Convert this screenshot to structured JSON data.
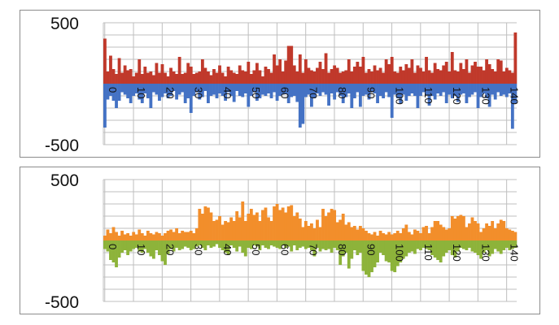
{
  "chart_data": [
    {
      "type": "bar",
      "colors": {
        "positive": "#c0392b",
        "negative": "#4472c4"
      },
      "ylim": [
        -500,
        500
      ],
      "y_ticks": [
        "500",
        "-500"
      ],
      "x_tick_labels": [
        "0",
        "10",
        "20",
        "30",
        "40",
        "50",
        "60",
        "70",
        "80",
        "90",
        "100",
        "110",
        "120",
        "130",
        "140"
      ],
      "grid": true,
      "x": [
        0,
        1,
        2,
        3,
        4,
        5,
        6,
        7,
        8,
        9,
        10,
        11,
        12,
        13,
        14,
        15,
        16,
        17,
        18,
        19,
        20,
        21,
        22,
        23,
        24,
        25,
        26,
        27,
        28,
        29,
        30,
        31,
        32,
        33,
        34,
        35,
        36,
        37,
        38,
        39,
        40,
        41,
        42,
        43,
        44,
        45,
        46,
        47,
        48,
        49,
        50,
        51,
        52,
        53,
        54,
        55,
        56,
        57,
        58,
        59,
        60,
        61,
        62,
        63,
        64,
        65,
        66,
        67,
        68,
        69,
        70,
        71,
        72,
        73,
        74,
        75,
        76,
        77,
        78,
        79,
        80,
        81,
        82,
        83,
        84,
        85,
        86,
        87,
        88,
        89,
        90,
        91,
        92,
        93,
        94,
        95,
        96,
        97,
        98,
        99,
        100,
        101,
        102,
        103,
        104,
        105,
        106,
        107,
        108,
        109,
        110,
        111,
        112,
        113,
        114,
        115,
        116,
        117,
        118,
        119,
        120,
        121,
        122,
        123,
        124,
        125,
        126,
        127,
        128,
        129,
        130,
        131,
        132,
        133,
        134,
        135,
        136,
        137,
        138,
        139,
        140,
        141,
        142,
        143
      ],
      "positive_values": [
        370,
        100,
        230,
        120,
        80,
        210,
        90,
        150,
        110,
        120,
        60,
        90,
        200,
        80,
        140,
        90,
        100,
        70,
        170,
        90,
        160,
        90,
        60,
        130,
        100,
        80,
        220,
        80,
        90,
        170,
        140,
        80,
        90,
        100,
        200,
        130,
        100,
        70,
        120,
        90,
        150,
        90,
        60,
        140,
        110,
        90,
        80,
        150,
        110,
        100,
        180,
        80,
        110,
        170,
        110,
        60,
        140,
        120,
        90,
        240,
        150,
        200,
        100,
        190,
        310,
        310,
        150,
        100,
        240,
        90,
        200,
        130,
        110,
        100,
        130,
        180,
        120,
        250,
        90,
        120,
        150,
        130,
        90,
        100,
        110,
        200,
        100,
        140,
        180,
        140,
        220,
        90,
        120,
        100,
        150,
        110,
        130,
        90,
        200,
        160,
        220,
        100,
        90,
        140,
        110,
        160,
        130,
        200,
        90,
        150,
        130,
        100,
        220,
        110,
        90,
        170,
        120,
        110,
        150,
        180,
        100,
        260,
        110,
        100,
        170,
        120,
        200,
        90,
        150,
        180,
        140,
        140,
        110,
        200,
        160,
        120,
        100,
        200,
        190,
        100,
        130,
        110,
        90,
        420
      ],
      "negative_values": [
        -360,
        -130,
        -100,
        -140,
        -200,
        -140,
        -70,
        -90,
        -120,
        -160,
        -100,
        -80,
        -130,
        -160,
        -80,
        -120,
        -200,
        -70,
        -90,
        -140,
        -110,
        -80,
        -120,
        -100,
        -60,
        -130,
        -90,
        -70,
        -160,
        -120,
        -240,
        -100,
        -70,
        -130,
        -110,
        -60,
        -160,
        -100,
        -90,
        -120,
        -80,
        -100,
        -140,
        -70,
        -100,
        -150,
        -60,
        -100,
        -110,
        -80,
        -190,
        -100,
        -70,
        -140,
        -120,
        -90,
        -100,
        -80,
        -120,
        -70,
        -140,
        -100,
        -90,
        -80,
        -160,
        -110,
        -100,
        -150,
        -360,
        -330,
        -110,
        -90,
        -190,
        -120,
        -80,
        -100,
        -70,
        -90,
        -180,
        -80,
        -130,
        -70,
        -100,
        -160,
        -110,
        -80,
        -200,
        -120,
        -70,
        -190,
        -100,
        -90,
        -130,
        -70,
        -80,
        -160,
        -100,
        -120,
        -70,
        -110,
        -280,
        -90,
        -120,
        -160,
        -90,
        -140,
        -100,
        -80,
        -100,
        -200,
        -100,
        -70,
        -90,
        -180,
        -100,
        -130,
        -80,
        -100,
        -70,
        -160,
        -90,
        -120,
        -100,
        -150,
        -90,
        -80,
        -160,
        -110,
        -90,
        -70,
        -200,
        -110,
        -80,
        -120,
        -190,
        -90,
        -130,
        -70,
        -100,
        -90,
        -110,
        -80,
        -370,
        -160
      ]
    },
    {
      "type": "bar",
      "colors": {
        "positive": "#f28e2b",
        "negative": "#8db33a"
      },
      "ylim": [
        -500,
        500
      ],
      "y_ticks": [
        "500",
        "-500"
      ],
      "x_tick_labels": [
        "0",
        "10",
        "20",
        "30",
        "40",
        "50",
        "60",
        "70",
        "80",
        "90",
        "100",
        "110",
        "120",
        "130",
        "140"
      ],
      "grid": true,
      "x": [
        0,
        1,
        2,
        3,
        4,
        5,
        6,
        7,
        8,
        9,
        10,
        11,
        12,
        13,
        14,
        15,
        16,
        17,
        18,
        19,
        20,
        21,
        22,
        23,
        24,
        25,
        26,
        27,
        28,
        29,
        30,
        31,
        32,
        33,
        34,
        35,
        36,
        37,
        38,
        39,
        40,
        41,
        42,
        43,
        44,
        45,
        46,
        47,
        48,
        49,
        50,
        51,
        52,
        53,
        54,
        55,
        56,
        57,
        58,
        59,
        60,
        61,
        62,
        63,
        64,
        65,
        66,
        67,
        68,
        69,
        70,
        71,
        72,
        73,
        74,
        75,
        76,
        77,
        78,
        79,
        80,
        81,
        82,
        83,
        84,
        85,
        86,
        87,
        88,
        89,
        90,
        91,
        92,
        93,
        94,
        95,
        96,
        97,
        98,
        99,
        100,
        101,
        102,
        103,
        104,
        105,
        106,
        107,
        108,
        109,
        110,
        111,
        112,
        113,
        114,
        115,
        116,
        117,
        118,
        119,
        120,
        121,
        122,
        123,
        124,
        125,
        126,
        127,
        128,
        129,
        130,
        131,
        132,
        133,
        134,
        135,
        136,
        137,
        138,
        139,
        140,
        141,
        142,
        143
      ],
      "positive_values": [
        40,
        90,
        60,
        110,
        70,
        40,
        80,
        50,
        60,
        40,
        70,
        50,
        90,
        60,
        40,
        80,
        60,
        50,
        70,
        60,
        40,
        60,
        80,
        90,
        70,
        100,
        60,
        80,
        70,
        70,
        80,
        60,
        100,
        260,
        220,
        280,
        270,
        230,
        160,
        170,
        200,
        130,
        160,
        150,
        190,
        160,
        240,
        190,
        320,
        160,
        220,
        260,
        210,
        230,
        160,
        250,
        270,
        190,
        160,
        280,
        300,
        250,
        270,
        230,
        280,
        290,
        200,
        230,
        180,
        110,
        160,
        120,
        140,
        100,
        170,
        110,
        260,
        200,
        230,
        260,
        250,
        150,
        170,
        220,
        130,
        150,
        110,
        120,
        90,
        120,
        100,
        80,
        60,
        50,
        70,
        40,
        80,
        60,
        50,
        70,
        50,
        60,
        80,
        60,
        100,
        130,
        70,
        50,
        90,
        80,
        60,
        110,
        120,
        60,
        110,
        160,
        160,
        130,
        110,
        90,
        100,
        200,
        180,
        200,
        210,
        200,
        110,
        140,
        190,
        160,
        140,
        70,
        100,
        140,
        120,
        160,
        100,
        140,
        170,
        160,
        100,
        90,
        80,
        70
      ],
      "negative_values": [
        -70,
        -90,
        -160,
        -180,
        -220,
        -140,
        -100,
        -80,
        -120,
        -90,
        -70,
        -60,
        -90,
        -100,
        -70,
        -100,
        -130,
        -150,
        -80,
        -120,
        -170,
        -200,
        -110,
        -70,
        -90,
        -60,
        -80,
        -70,
        -50,
        -60,
        -80,
        -70,
        -50,
        -40,
        -60,
        -80,
        -40,
        -60,
        -50,
        -30,
        -60,
        -80,
        -100,
        -120,
        -40,
        -60,
        -90,
        -50,
        -100,
        -130,
        -60,
        -70,
        -40,
        -50,
        -80,
        -40,
        -60,
        -70,
        -40,
        -50,
        -60,
        -70,
        -40,
        -60,
        -50,
        -90,
        -40,
        -80,
        -60,
        -50,
        -70,
        -60,
        -80,
        -130,
        -60,
        -90,
        -70,
        -80,
        -70,
        -100,
        -60,
        -80,
        -200,
        -130,
        -100,
        -230,
        -150,
        -80,
        -120,
        -100,
        -250,
        -280,
        -300,
        -260,
        -220,
        -180,
        -100,
        -120,
        -170,
        -180,
        -250,
        -260,
        -210,
        -180,
        -150,
        -130,
        -100,
        -90,
        -110,
        -70,
        -80,
        -60,
        -70,
        -80,
        -120,
        -140,
        -160,
        -180,
        -130,
        -100,
        -80,
        -120,
        -140,
        -90,
        -60,
        -70,
        -80,
        -60,
        -90,
        -100,
        -120,
        -150,
        -100,
        -80,
        -130,
        -110,
        -70,
        -90,
        -110,
        -80,
        -60,
        -80,
        -70,
        -60
      ]
    }
  ]
}
